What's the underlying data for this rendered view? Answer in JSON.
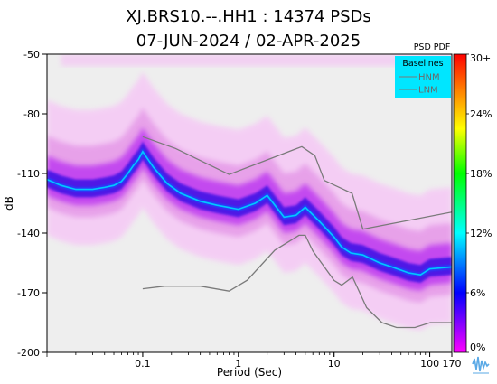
{
  "title_line1": "XJ.BRS10.--.HH1 : 14374 PSDs",
  "title_line2": "07-JUN-2024 / 02-APR-2025",
  "colorbar_title": "PSD PDF",
  "legend_title": "Baselines",
  "logo": "iris-logo-icon",
  "colors": {
    "plot_background": "#eeeeee",
    "legend_background": "#00e6ff",
    "baseline_line": "#7a7a7a",
    "mode_color": "#00c8ff"
  },
  "chart_data": {
    "type": "heatmap",
    "xlabel": "Period (Sec)",
    "ylabel": "dB",
    "x_scale": "log",
    "xlim": [
      0.01,
      170
    ],
    "ylim": [
      -200,
      -50
    ],
    "x_ticks": [
      {
        "value": 0.1,
        "label": "0.1"
      },
      {
        "value": 1,
        "label": "1"
      },
      {
        "value": 10,
        "label": "10"
      },
      {
        "value": 100,
        "label": "100"
      },
      {
        "value": 170,
        "label": "170"
      }
    ],
    "y_ticks": [
      {
        "value": -50,
        "label": "-50"
      },
      {
        "value": -80,
        "label": "-80"
      },
      {
        "value": -110,
        "label": "-110"
      },
      {
        "value": -140,
        "label": "-140"
      },
      {
        "value": -170,
        "label": "-170"
      },
      {
        "value": -200,
        "label": "-200"
      }
    ],
    "colorbar": {
      "ticks": [
        "30+",
        "24%",
        "18%",
        "12%",
        "6%",
        "0%"
      ],
      "stops": [
        "#ff00ff",
        "#0000ff",
        "#00ffff",
        "#00ff00",
        "#ffff00",
        "#ff8000",
        "#ff0000"
      ]
    },
    "series": [
      {
        "name": "HNM",
        "x": [
          0.1,
          0.22,
          0.8,
          3.8,
          4.6,
          6.3,
          7.9,
          15.4,
          20,
          354.8
        ],
        "y": [
          -91.5,
          -97.4,
          -110.5,
          -98,
          -96.5,
          -101,
          -113.5,
          -120,
          -138,
          -126.5
        ]
      },
      {
        "name": "LNM",
        "x": [
          0.1,
          0.17,
          0.4,
          0.8,
          1.24,
          2.4,
          4.3,
          5,
          6,
          10,
          12,
          15.6,
          21.9,
          31.6,
          45,
          70,
          101,
          154,
          328,
          600
        ],
        "y": [
          -168,
          -166.7,
          -166.7,
          -169.2,
          -163.7,
          -148.6,
          -141.1,
          -141.1,
          -149,
          -163.8,
          -166.2,
          -162.1,
          -177.5,
          -185,
          -187.5,
          -187.5,
          -185,
          -185,
          -185,
          -185
        ]
      }
    ],
    "mode_curve": {
      "x": [
        0.01,
        0.014,
        0.02,
        0.03,
        0.04,
        0.05,
        0.06,
        0.07,
        0.08,
        0.09,
        0.1,
        0.13,
        0.18,
        0.25,
        0.4,
        0.6,
        1.0,
        1.5,
        2.0,
        2.5,
        3.0,
        4.0,
        5.0,
        7.0,
        10,
        12,
        15,
        20,
        30,
        40,
        60,
        80,
        100,
        170
      ],
      "y": [
        -113,
        -116,
        -118,
        -118,
        -117,
        -116,
        -114,
        -110,
        -106,
        -103,
        -99,
        -107,
        -115,
        -120,
        -124,
        -126,
        -128,
        -125,
        -121,
        -127,
        -132,
        -131,
        -127,
        -134,
        -142,
        -147,
        -150,
        -151,
        -155,
        -157,
        -160,
        -161,
        -158,
        -157
      ]
    }
  }
}
